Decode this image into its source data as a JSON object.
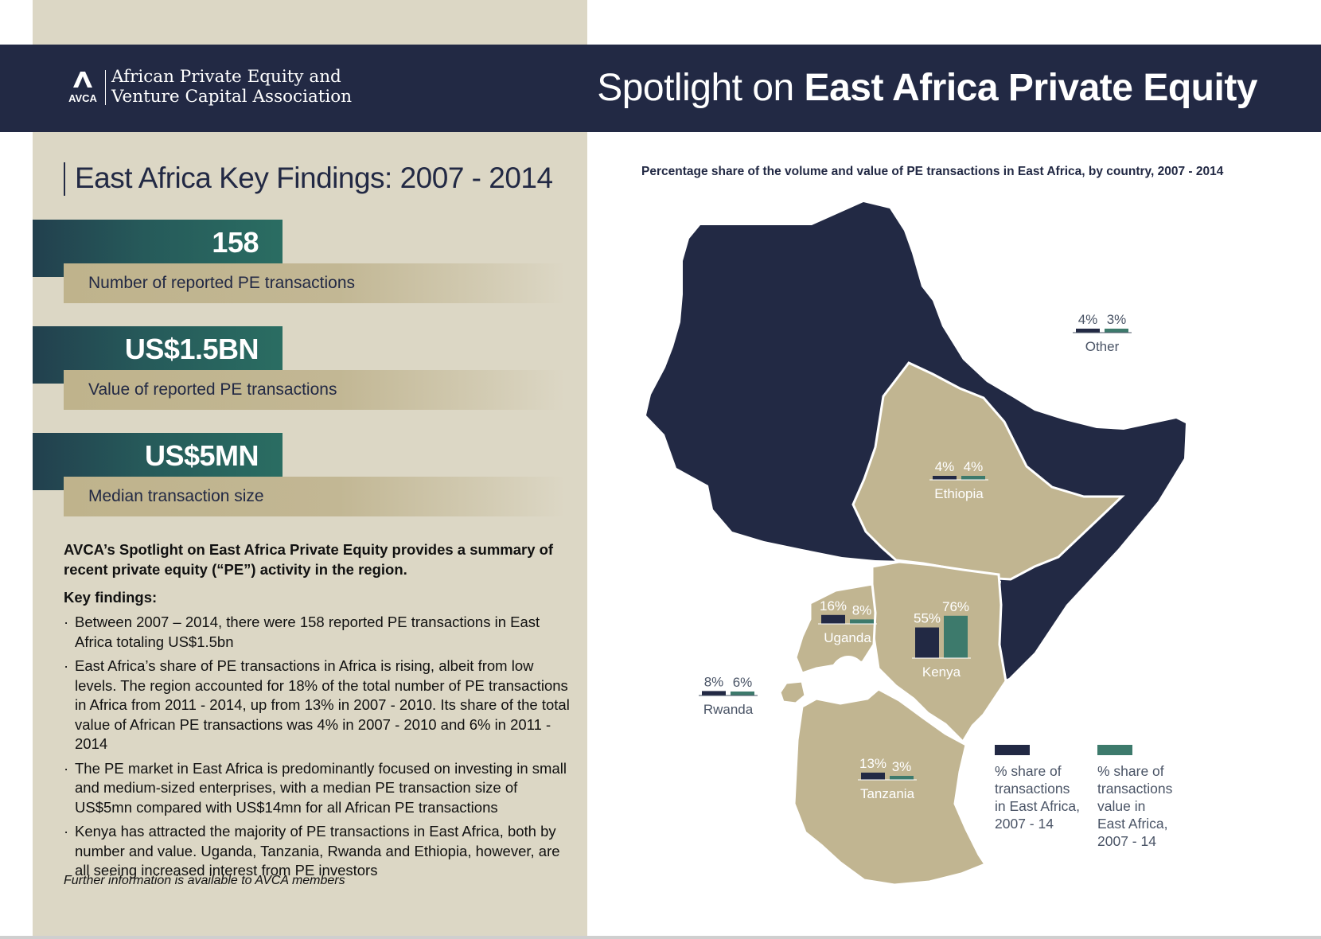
{
  "header": {
    "org_line1": "African Private Equity and",
    "org_line2": "Venture Capital Association",
    "logo_abbr": "AVCA",
    "title_light": "Spotlight on ",
    "title_bold": "East Africa Private Equity"
  },
  "findings": {
    "heading": "East Africa Key Findings: 2007 - 2014",
    "stats": [
      {
        "value": "158",
        "label": "Number of reported PE transactions"
      },
      {
        "value": "US$1.5BN",
        "label": "Value of reported PE transactions"
      },
      {
        "value": "US$5MN",
        "label": "Median transaction size"
      }
    ],
    "intro": "AVCA’s Spotlight on East Africa Private Equity provides a summary of recent private equity (“PE”) activity in the region.",
    "key_findings_heading": "Key findings:",
    "bullet_char": "·",
    "bullets": [
      "Between 2007 – 2014, there were 158 reported PE transactions in East Africa totaling US$1.5bn",
      "East Africa’s share of PE transactions in Africa is rising, albeit from low levels. The region accounted for 18% of the total number of PE transactions in Africa from 2011 - 2014, up from 13% in 2007 - 2010. Its share of the total value of African PE transactions was 4% in 2007 - 2010 and 6% in 2011 - 2014",
      "The PE market in East Africa is predominantly focused on investing in small and medium-sized enterprises, with a median PE transaction size of US$5mn compared with US$14mn for all African PE transactions",
      "Kenya has attracted the majority of PE transactions in East Africa, both by number and value. Uganda, Tanzania, Rwanda and Ethiopia, however, are all seeing increased interest from PE investors"
    ],
    "footnote": "Further information is available to AVCA members"
  },
  "chart_data": {
    "type": "bar",
    "title": "Percentage share of the volume and value of PE transactions in East Africa, by country, 2007 - 2014",
    "categories": [
      "Other",
      "Ethiopia",
      "Uganda",
      "Kenya",
      "Rwanda",
      "Tanzania"
    ],
    "series": [
      {
        "name": "% share of transactions in East Africa, 2007 - 14",
        "values": [
          4,
          4,
          16,
          55,
          8,
          13
        ],
        "labels": [
          "4%",
          "4%",
          "16%",
          "55%",
          "8%",
          "13%"
        ],
        "color": "#222944"
      },
      {
        "name": "% share of transactions value in East Africa, 2007 - 14",
        "values": [
          3,
          4,
          8,
          76,
          6,
          3
        ],
        "labels": [
          "3%",
          "4%",
          "8%",
          "76%",
          "6%",
          "3%"
        ],
        "color": "#3d7a6c"
      }
    ]
  },
  "legend": {
    "volume_lines": [
      "% share of",
      "transactions",
      "in East Africa,",
      "2007 - 14"
    ],
    "value_lines": [
      "% share of",
      "transactions",
      "value in",
      "East Africa,",
      "2007 - 14"
    ]
  },
  "colors": {
    "navy": "#222944",
    "teal": "#3d7a6c",
    "tan": "#c1b591",
    "panel": "#dcd7c5"
  }
}
